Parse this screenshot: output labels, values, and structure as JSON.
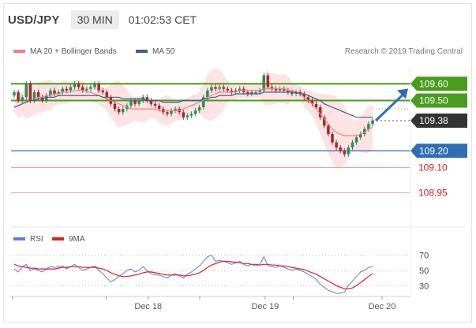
{
  "header": {
    "pair": "USD/JPY",
    "timeframe": "30 MIN",
    "time": "01:02:53 CET"
  },
  "legend": {
    "ma20": "MA 20 + Bollinger Bands",
    "ma50": "MA 50",
    "rsi": "RSI",
    "nine_ma": "9MA"
  },
  "copyright": "Research © 2019 Trading Central",
  "colors": {
    "up": "#2e8b57",
    "down": "#a52a2a",
    "green": "#4a9c1e",
    "blue": "#2f6eb5",
    "red": "#e0504e",
    "band": "#fde3e3",
    "ma20": "#f08080",
    "ma50": "#3a5f9f"
  },
  "chart_data": [
    {
      "type": "candlestick",
      "ylim": [
        108.9,
        109.7
      ],
      "x_tick_labels": [
        "Dec 18",
        "Dec 19",
        "Dec 20"
      ],
      "levels": [
        {
          "value": 109.6,
          "label": "109.60",
          "style": "resistance"
        },
        {
          "value": 109.5,
          "label": "109.50",
          "style": "resistance"
        },
        {
          "value": 109.38,
          "label": "109.38",
          "style": "last"
        },
        {
          "value": 109.2,
          "label": "109.20",
          "style": "support"
        },
        {
          "value": 109.1,
          "label": "109.10",
          "style": "minor"
        },
        {
          "value": 108.95,
          "label": "108.95",
          "style": "minor"
        }
      ],
      "close": [
        109.55,
        109.5,
        109.52,
        109.6,
        109.5,
        109.55,
        109.52,
        109.5,
        109.53,
        109.56,
        109.54,
        109.55,
        109.57,
        109.56,
        109.58,
        109.6,
        109.58,
        109.56,
        109.57,
        109.58,
        109.6,
        109.56,
        109.55,
        109.52,
        109.48,
        109.45,
        109.43,
        109.45,
        109.47,
        109.5,
        109.48,
        109.5,
        109.52,
        109.5,
        109.48,
        109.47,
        109.45,
        109.43,
        109.42,
        109.44,
        109.45,
        109.43,
        109.4,
        109.41,
        109.42,
        109.44,
        109.46,
        109.52,
        109.56,
        109.58,
        109.57,
        109.58,
        109.57,
        109.56,
        109.55,
        109.56,
        109.57,
        109.55,
        109.54,
        109.55,
        109.55,
        109.56,
        109.65,
        109.58,
        109.57,
        109.56,
        109.57,
        109.56,
        109.55,
        109.54,
        109.55,
        109.54,
        109.52,
        109.5,
        109.48,
        109.46,
        109.4,
        109.35,
        109.3,
        109.25,
        109.22,
        109.2,
        109.18,
        109.22,
        109.25,
        109.28,
        109.3,
        109.33,
        109.36,
        109.38
      ],
      "ma20": [
        109.46,
        109.47,
        109.48,
        109.49,
        109.5,
        109.51,
        109.52,
        109.52,
        109.53,
        109.53,
        109.54,
        109.54,
        109.55,
        109.55,
        109.55,
        109.56,
        109.56,
        109.56,
        109.55,
        109.55,
        109.54,
        109.53,
        109.52,
        109.51,
        109.5,
        109.49,
        109.48,
        109.47,
        109.46,
        109.45,
        109.45,
        109.45,
        109.45,
        109.45,
        109.45,
        109.45,
        109.44,
        109.44,
        109.44,
        109.44,
        109.44,
        109.44,
        109.45,
        109.46,
        109.47,
        109.48,
        109.49,
        109.5,
        109.52,
        109.53,
        109.54,
        109.55,
        109.55,
        109.55,
        109.55,
        109.55,
        109.56,
        109.56,
        109.56,
        109.56,
        109.56,
        109.56,
        109.57,
        109.57,
        109.57,
        109.57,
        109.57,
        109.57,
        109.56,
        109.56,
        109.55,
        109.54,
        109.52,
        109.5,
        109.48,
        109.45,
        109.42,
        109.39,
        109.36,
        109.33,
        109.31,
        109.3,
        109.29,
        109.29,
        109.29,
        109.29,
        109.3,
        109.31,
        109.33,
        109.34
      ],
      "ma50": [
        109.46,
        109.47,
        109.48,
        109.49,
        109.5,
        109.5,
        109.51,
        109.51,
        109.52,
        109.52,
        109.52,
        109.53,
        109.53,
        109.53,
        109.53,
        109.53,
        109.53,
        109.53,
        109.53,
        109.53,
        109.53,
        109.53,
        109.52,
        109.52,
        109.52,
        109.52,
        109.52,
        109.51,
        109.51,
        109.51,
        109.51,
        109.51,
        109.51,
        109.5,
        109.5,
        109.5,
        109.5,
        109.49,
        109.49,
        109.49,
        109.49,
        109.49,
        109.5,
        109.5,
        109.5,
        109.5,
        109.5,
        109.51,
        109.51,
        109.52,
        109.52,
        109.53,
        109.53,
        109.53,
        109.53,
        109.54,
        109.54,
        109.54,
        109.54,
        109.54,
        109.54,
        109.54,
        109.55,
        109.55,
        109.55,
        109.55,
        109.55,
        109.55,
        109.55,
        109.55,
        109.55,
        109.54,
        109.54,
        109.53,
        109.52,
        109.51,
        109.5,
        109.48,
        109.47,
        109.46,
        109.45,
        109.44,
        109.43,
        109.42,
        109.41,
        109.4,
        109.4,
        109.4,
        109.4,
        109.4
      ],
      "forecast_arrow": {
        "from": 109.38,
        "to": 109.58
      }
    },
    {
      "type": "line",
      "name": "RSI",
      "ylim": [
        20,
        80
      ],
      "y_tick_labels": [
        "70",
        "50",
        "30"
      ],
      "reference_lines": [
        70,
        50,
        30
      ],
      "series": [
        {
          "name": "RSI",
          "values": [
            52,
            48,
            55,
            58,
            50,
            52,
            50,
            48,
            52,
            55,
            54,
            55,
            56,
            52,
            55,
            58,
            54,
            50,
            52,
            54,
            56,
            50,
            46,
            40,
            35,
            38,
            42,
            46,
            50,
            52,
            48,
            50,
            55,
            50,
            46,
            44,
            44,
            42,
            40,
            44,
            46,
            43,
            40,
            45,
            48,
            52,
            56,
            62,
            68,
            70,
            62,
            63,
            62,
            60,
            58,
            60,
            62,
            58,
            56,
            58,
            56,
            58,
            68,
            56,
            55,
            54,
            56,
            54,
            52,
            50,
            52,
            50,
            48,
            45,
            42,
            38,
            32,
            28,
            24,
            22,
            20,
            20,
            22,
            30,
            36,
            42,
            48,
            50,
            54,
            55
          ]
        },
        {
          "name": "9MA",
          "values": [
            58,
            56,
            55,
            54,
            53,
            53,
            52,
            52,
            52,
            52,
            52,
            53,
            54,
            54,
            55,
            55,
            55,
            54,
            54,
            54,
            54,
            53,
            52,
            50,
            47,
            45,
            43,
            42,
            42,
            43,
            44,
            45,
            47,
            48,
            48,
            47,
            46,
            45,
            44,
            44,
            44,
            44,
            43,
            43,
            44,
            45,
            47,
            50,
            54,
            57,
            59,
            61,
            62,
            62,
            61,
            61,
            60,
            59,
            59,
            58,
            58,
            57,
            58,
            58,
            57,
            57,
            56,
            56,
            55,
            54,
            53,
            52,
            51,
            49,
            47,
            45,
            42,
            39,
            36,
            33,
            30,
            28,
            26,
            26,
            27,
            30,
            34,
            38,
            42,
            46
          ]
        }
      ]
    }
  ]
}
